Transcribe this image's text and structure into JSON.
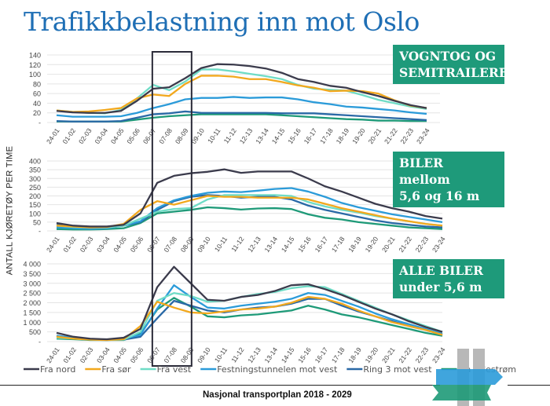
{
  "title": "Trafikkbelastning inn mot Oslo",
  "y_axis_label": "ANTALL KJØRETØY PER TIME",
  "footer": "Nasjonal transportplan 2018 - 2029",
  "colors": {
    "Fra nord": "#3b3b4c",
    "Fra sør": "#f2a81d",
    "Fra vest": "#6fdcc6",
    "Festningstunnelen mot vest": "#2b9bd9",
    "Ring 3 mot vest": "#2a69a6",
    "Fra Lillestrøm": "#1e9a78",
    "tag": "#1e9a7a",
    "title": "#1f6fb5"
  },
  "highlight": {
    "from": "06-07",
    "to": "08-09"
  },
  "legend": [
    "Fra nord",
    "Fra sør",
    "Fra vest",
    "Festningstunnelen mot vest",
    "Ring 3 mot vest",
    "Fra Lillestrøm"
  ],
  "chart_data": [
    {
      "type": "line",
      "title": "VOGNTOG OG SEMITRAILERE",
      "title_lines": [
        "VOGNTOG OG",
        "SEMITRAILERE"
      ],
      "grid": true,
      "ylim": [
        0,
        140
      ],
      "yticks": [
        "-",
        "20",
        "40",
        "60",
        "80",
        "100",
        "120",
        "140"
      ],
      "categories": [
        "24-01",
        "01-02",
        "02-03",
        "03-04",
        "04-05",
        "05-06",
        "06-07",
        "07-08",
        "08-09",
        "09-10",
        "10-11",
        "11-12",
        "12-13",
        "13-14",
        "14-15",
        "15-16",
        "16-17",
        "17-18",
        "18-19",
        "19-20",
        "20-21",
        "21-22",
        "22-23",
        "23-24"
      ],
      "series": [
        {
          "name": "Fra nord",
          "values": [
            24,
            21,
            20,
            20,
            24,
            45,
            70,
            73,
            92,
            113,
            121,
            120,
            117,
            112,
            103,
            90,
            84,
            76,
            72,
            63,
            55,
            45,
            36,
            30
          ]
        },
        {
          "name": "Fra sør",
          "values": [
            25,
            22,
            23,
            26,
            30,
            50,
            58,
            55,
            80,
            97,
            97,
            95,
            90,
            90,
            84,
            77,
            72,
            65,
            66,
            65,
            60,
            46,
            35,
            30
          ]
        },
        {
          "name": "Fra vest",
          "values": [
            25,
            22,
            20,
            19,
            26,
            50,
            78,
            67,
            85,
            110,
            110,
            106,
            101,
            96,
            90,
            78,
            70,
            68,
            66,
            57,
            47,
            40,
            33,
            28
          ]
        },
        {
          "name": "Festningstunnelen mot vest",
          "values": [
            15,
            12,
            12,
            12,
            13,
            20,
            30,
            38,
            48,
            51,
            51,
            53,
            51,
            52,
            52,
            48,
            42,
            38,
            33,
            31,
            28,
            25,
            21,
            18
          ]
        },
        {
          "name": "Ring 3 mot vest",
          "values": [
            3,
            2,
            2,
            2,
            3,
            10,
            17,
            19,
            23,
            20,
            20,
            20,
            20,
            20,
            19,
            19,
            19,
            17,
            15,
            13,
            11,
            9,
            7,
            5
          ]
        },
        {
          "name": "Fra Lillestrøm",
          "values": [
            2,
            2,
            2,
            2,
            2,
            6,
            10,
            13,
            15,
            17,
            17,
            17,
            17,
            17,
            15,
            13,
            11,
            9,
            7,
            6,
            4,
            4,
            3,
            3
          ]
        }
      ]
    },
    {
      "type": "line",
      "title": "BILER mellom 5,6 og 16 m",
      "title_lines": [
        "BILER mellom",
        "5,6 og 16 m"
      ],
      "grid": true,
      "ylim": [
        0,
        400
      ],
      "yticks": [
        "-",
        "50",
        "100",
        "150",
        "200",
        "250",
        "300",
        "350",
        "400"
      ],
      "categories": [
        "24-01",
        "01-02",
        "02-03",
        "03-04",
        "04-05",
        "05-06",
        "06-07",
        "07-08",
        "08-09",
        "09-10",
        "10-11",
        "11-12",
        "12-13",
        "13-14",
        "14-15",
        "15-16",
        "16-17",
        "17-18",
        "18-19",
        "19-20",
        "20-21",
        "21-22",
        "22-23",
        "23-24"
      ],
      "series": [
        {
          "name": "Fra nord",
          "values": [
            45,
            30,
            25,
            25,
            35,
            100,
            275,
            315,
            330,
            338,
            352,
            332,
            340,
            340,
            340,
            300,
            255,
            225,
            190,
            155,
            130,
            110,
            85,
            70
          ]
        },
        {
          "name": "Fra sør",
          "values": [
            30,
            25,
            20,
            22,
            40,
            120,
            170,
            150,
            175,
            200,
            195,
            195,
            190,
            190,
            190,
            180,
            155,
            130,
            110,
            90,
            70,
            55,
            40,
            30
          ]
        },
        {
          "name": "Fra vest",
          "values": [
            30,
            22,
            20,
            20,
            30,
            70,
            110,
            125,
            130,
            180,
            205,
            205,
            205,
            205,
            200,
            165,
            140,
            120,
            105,
            85,
            70,
            55,
            40,
            30
          ]
        },
        {
          "name": "Festningstunnelen mot vest",
          "values": [
            20,
            15,
            12,
            15,
            30,
            55,
            130,
            175,
            200,
            218,
            225,
            222,
            230,
            240,
            245,
            225,
            195,
            160,
            135,
            115,
            95,
            80,
            65,
            50
          ]
        },
        {
          "name": "Ring 3 mot vest",
          "values": [
            35,
            25,
            20,
            22,
            30,
            50,
            120,
            170,
            195,
            205,
            200,
            190,
            195,
            195,
            180,
            145,
            120,
            100,
            80,
            60,
            45,
            35,
            25,
            20
          ]
        },
        {
          "name": "Fra Lillestrøm",
          "values": [
            10,
            8,
            8,
            10,
            15,
            45,
            100,
            110,
            120,
            135,
            130,
            122,
            128,
            130,
            125,
            95,
            75,
            65,
            50,
            40,
            30,
            20,
            15,
            10
          ]
        }
      ]
    },
    {
      "type": "line",
      "title": "ALLE BILER under 5,6 m",
      "title_lines": [
        "ALLE BILER",
        "under 5,6 m"
      ],
      "grid": true,
      "ylim": [
        0,
        4000
      ],
      "yticks": [
        "-",
        "500",
        "1 000",
        "1 500",
        "2 000",
        "2 500",
        "3 000",
        "3 500",
        "4 000"
      ],
      "categories": [
        "24-01",
        "01-02",
        "02-03",
        "03-04",
        "04-05",
        "05-06",
        "06-07",
        "07-08",
        "08-09",
        "09-10",
        "10-11",
        "11-12",
        "12-13",
        "13-14",
        "14-15",
        "15-16",
        "16-17",
        "17-18",
        "18-19",
        "19-20",
        "20-21",
        "21-22",
        "22-23",
        "23-24"
      ],
      "series": [
        {
          "name": "Fra nord",
          "values": [
            450,
            250,
            150,
            120,
            200,
            650,
            2800,
            3850,
            3000,
            2150,
            2100,
            2300,
            2400,
            2600,
            2900,
            2950,
            2700,
            2400,
            2050,
            1700,
            1400,
            1050,
            750,
            500
          ]
        },
        {
          "name": "Fra sør",
          "values": [
            250,
            150,
            100,
            80,
            120,
            800,
            2050,
            1750,
            1500,
            1450,
            1550,
            1650,
            1700,
            1800,
            2000,
            2300,
            2200,
            1950,
            1600,
            1300,
            1000,
            800,
            600,
            350
          ]
        },
        {
          "name": "Fra vest",
          "values": [
            200,
            150,
            100,
            80,
            100,
            500,
            2100,
            2500,
            2350,
            2050,
            2100,
            2300,
            2450,
            2550,
            2750,
            2850,
            2800,
            2450,
            2100,
            1750,
            1400,
            1100,
            800,
            500
          ]
        },
        {
          "name": "Festningstunnelen mot vest",
          "values": [
            300,
            200,
            130,
            100,
            150,
            350,
            1700,
            2900,
            2300,
            1750,
            1700,
            1850,
            1950,
            2050,
            2200,
            2500,
            2400,
            2100,
            1800,
            1450,
            1150,
            900,
            650,
            400
          ]
        },
        {
          "name": "Ring 3 mot vest",
          "values": [
            300,
            150,
            100,
            80,
            100,
            250,
            1200,
            2100,
            1850,
            1600,
            1500,
            1650,
            1750,
            1800,
            1950,
            2200,
            2200,
            1850,
            1550,
            1300,
            1050,
            800,
            600,
            350
          ]
        },
        {
          "name": "Fra Lillestrøm",
          "values": [
            150,
            120,
            80,
            80,
            80,
            400,
            1650,
            2250,
            1800,
            1300,
            1250,
            1350,
            1400,
            1500,
            1600,
            1850,
            1650,
            1400,
            1250,
            1050,
            850,
            650,
            450,
            300
          ]
        }
      ]
    }
  ]
}
